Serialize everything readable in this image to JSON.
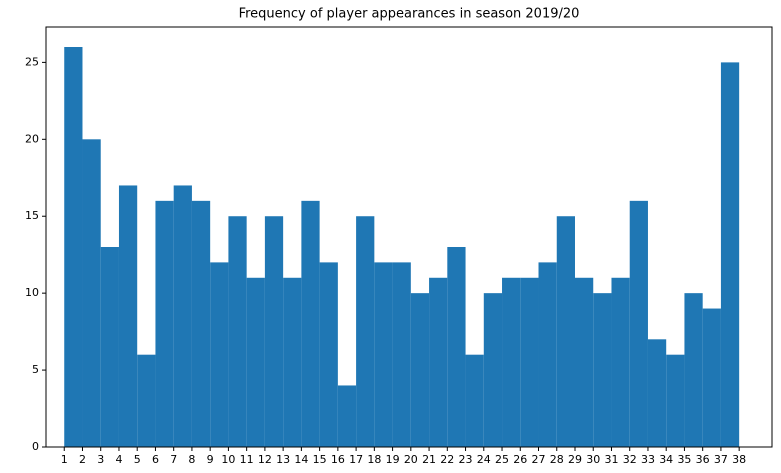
{
  "chart_data": {
    "type": "histogram",
    "title": "Frequency of player appearances in season 2019/20",
    "bins": [
      1,
      2,
      3,
      4,
      5,
      6,
      7,
      8,
      9,
      10,
      11,
      12,
      13,
      14,
      15,
      16,
      17,
      18,
      19,
      20,
      21,
      22,
      23,
      24,
      25,
      26,
      27,
      28,
      29,
      30,
      31,
      32,
      33,
      34,
      35,
      36,
      37,
      38
    ],
    "values": [
      26,
      20,
      13,
      17,
      6,
      16,
      17,
      16,
      12,
      15,
      11,
      15,
      11,
      16,
      12,
      4,
      15,
      12,
      12,
      10,
      11,
      13,
      6,
      10,
      11,
      11,
      12,
      15,
      11,
      10,
      11,
      16,
      7,
      6,
      10,
      9,
      25
    ],
    "color": "#1f77b4",
    "xlim": [
      0,
      39.8
    ],
    "ylim": [
      0,
      27.3
    ],
    "xticks": [
      1,
      2,
      3,
      4,
      5,
      6,
      7,
      8,
      9,
      10,
      11,
      12,
      13,
      14,
      15,
      16,
      17,
      18,
      19,
      20,
      21,
      22,
      23,
      24,
      25,
      26,
      27,
      28,
      29,
      30,
      31,
      32,
      33,
      34,
      35,
      36,
      37,
      38
    ],
    "yticks": [
      0,
      5,
      10,
      15,
      20,
      25
    ]
  }
}
